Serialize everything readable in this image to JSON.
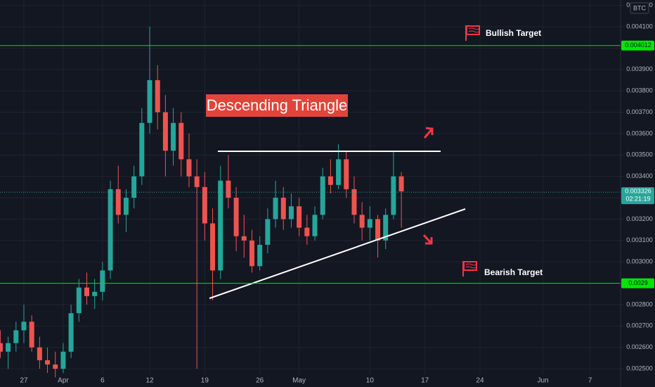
{
  "chart_data": {
    "type": "candlestick",
    "title": "Descending Triangle",
    "currency": "BTC",
    "up_color": "#26a69a",
    "down_color": "#ef5350",
    "grid": true,
    "categories": [
      null,
      null,
      null,
      "27",
      null,
      null,
      null,
      null,
      "Apr",
      null,
      null,
      null,
      null,
      "6",
      null,
      null,
      null,
      null,
      null,
      "12",
      null,
      null,
      null,
      null,
      null,
      null,
      "19",
      null,
      null,
      null,
      null,
      null,
      null,
      "26",
      null,
      null,
      null,
      null,
      "May",
      null,
      null,
      null,
      null,
      null,
      null,
      null,
      null,
      "10",
      null,
      null,
      null,
      null,
      null,
      null,
      "17",
      null,
      null,
      null,
      null,
      null,
      null,
      "24",
      null,
      null,
      null,
      null,
      null,
      null,
      null,
      "Jun",
      null,
      null,
      null,
      null,
      null,
      "7",
      null,
      null
    ],
    "open": [
      0.00262,
      0.00258,
      0.00262,
      0.00268,
      0.00272,
      0.0026,
      0.00254,
      0.00252,
      0.0025,
      0.00258,
      0.00276,
      0.00288,
      0.00284,
      0.00286,
      0.00296,
      0.00334,
      0.00322,
      0.0033,
      0.0034,
      0.00365,
      0.00385,
      0.0037,
      0.00352,
      0.00365,
      0.00348,
      0.0034,
      0.00335,
      0.00318,
      0.00296,
      0.00338,
      0.0033,
      0.00312,
      0.0031,
      0.00298,
      0.00308,
      0.0032,
      0.0033,
      0.0032,
      0.00326,
      0.00316,
      0.00312,
      0.00322,
      0.0034,
      0.00336,
      0.00348,
      0.00334,
      0.00322,
      0.00316,
      0.0032,
      0.0031,
      0.00322,
      0.0034,
      null,
      null,
      null,
      null,
      null,
      null,
      null,
      null,
      null,
      null,
      null,
      null,
      null,
      null,
      null,
      null,
      null,
      null,
      null,
      null,
      null,
      null,
      null,
      null,
      null,
      null
    ],
    "high": [
      0.00268,
      0.00265,
      0.00272,
      0.0028,
      0.00275,
      0.00265,
      0.0026,
      0.00258,
      0.00262,
      0.0028,
      0.00292,
      0.00295,
      0.00292,
      0.003,
      0.00338,
      0.00345,
      0.00334,
      0.00345,
      0.00372,
      0.0041,
      0.00392,
      0.00378,
      0.00372,
      0.0037,
      0.0036,
      0.00348,
      0.00342,
      0.00325,
      0.00345,
      0.0035,
      0.00335,
      0.00322,
      0.00315,
      0.00312,
      0.00325,
      0.00338,
      0.00335,
      0.00332,
      0.0033,
      0.00322,
      0.00326,
      0.00344,
      0.00348,
      0.00355,
      0.00352,
      0.0034,
      0.00328,
      0.00326,
      0.00322,
      0.00325,
      0.00352,
      0.00342,
      null,
      null,
      null,
      null,
      null,
      null,
      null,
      null,
      null,
      null,
      null,
      null,
      null,
      null,
      null,
      null,
      null,
      null,
      null,
      null,
      null,
      null,
      null,
      null,
      null,
      null
    ],
    "low": [
      0.00255,
      0.0025,
      0.00258,
      0.00262,
      0.00258,
      0.0025,
      0.00248,
      0.00246,
      0.00248,
      0.00255,
      0.00272,
      0.0028,
      0.00278,
      0.00282,
      0.00292,
      0.00318,
      0.00314,
      0.00325,
      0.00336,
      0.0036,
      0.00362,
      0.0034,
      0.00345,
      0.0034,
      0.00335,
      0.0025,
      0.0031,
      0.00282,
      0.00292,
      0.00325,
      0.00305,
      0.00302,
      0.00295,
      0.00296,
      0.00304,
      0.00316,
      0.00315,
      0.00316,
      0.00312,
      0.00308,
      0.0031,
      0.0032,
      0.00332,
      0.00334,
      0.0033,
      0.00318,
      0.0031,
      0.0031,
      0.00302,
      0.00306,
      0.0032,
      0.00316,
      null,
      null,
      null,
      null,
      null,
      null,
      null,
      null,
      null,
      null,
      null,
      null,
      null,
      null,
      null,
      null,
      null,
      null,
      null,
      null,
      null,
      null,
      null,
      null,
      null,
      null
    ],
    "close": [
      0.00258,
      0.00262,
      0.00268,
      0.00272,
      0.0026,
      0.00254,
      0.00252,
      0.0025,
      0.00258,
      0.00276,
      0.00288,
      0.00284,
      0.00286,
      0.00296,
      0.00334,
      0.00322,
      0.0033,
      0.0034,
      0.00365,
      0.00385,
      0.0037,
      0.00352,
      0.00365,
      0.00348,
      0.0034,
      0.00335,
      0.00318,
      0.00296,
      0.00338,
      0.0033,
      0.00312,
      0.0031,
      0.00298,
      0.00308,
      0.0032,
      0.0033,
      0.0032,
      0.00326,
      0.00316,
      0.00312,
      0.00322,
      0.0034,
      0.00336,
      0.00348,
      0.00334,
      0.00322,
      0.00316,
      0.0032,
      0.0031,
      0.00322,
      0.0034,
      0.00333,
      null,
      null,
      null,
      null,
      null,
      null,
      null,
      null,
      null,
      null,
      null,
      null,
      null,
      null,
      null,
      null,
      null,
      null,
      null,
      null,
      null,
      null,
      null,
      null,
      null,
      null
    ],
    "ylim": [
      0.002474,
      0.004225
    ],
    "yticks": [
      {
        "value": 0.0025,
        "label": "0.002500"
      },
      {
        "value": 0.0026,
        "label": "0.002600"
      },
      {
        "value": 0.0027,
        "label": "0.002700"
      },
      {
        "value": 0.0028,
        "label": "0.002800"
      },
      {
        "value": 0.0029,
        "label": "0.002900"
      },
      {
        "value": 0.003,
        "label": "0.003000"
      },
      {
        "value": 0.0031,
        "label": "0.003100"
      },
      {
        "value": 0.0032,
        "label": "0.003200"
      },
      {
        "value": 0.0033,
        "label": "0.003300"
      },
      {
        "value": 0.0034,
        "label": "0.003400"
      },
      {
        "value": 0.0035,
        "label": "0.003500"
      },
      {
        "value": 0.0036,
        "label": "0.003600"
      },
      {
        "value": 0.0037,
        "label": "0.003700"
      },
      {
        "value": 0.0038,
        "label": "0.003800"
      },
      {
        "value": 0.0039,
        "label": "0.003900"
      },
      {
        "value": 0.004,
        "label": "0.004000"
      },
      {
        "value": 0.0041,
        "label": "0.004100"
      },
      {
        "value": 0.0042,
        "label": "0.004200"
      }
    ],
    "target_lines": [
      {
        "name": "Bullish Target",
        "value": 0.004012,
        "color": "#00e600"
      },
      {
        "name": "Bearish Target",
        "value": 0.0029,
        "color": "#00e600"
      }
    ],
    "last_price": {
      "value": 0.003326,
      "countdown": "02:21:19",
      "color": "#26a69a"
    }
  }
}
